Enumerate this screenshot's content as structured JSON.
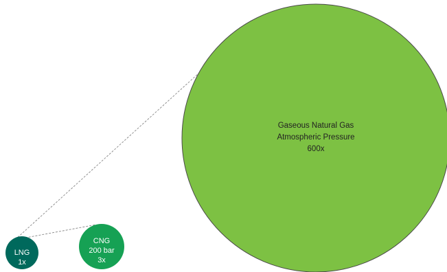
{
  "colors": {
    "gaseous": "#7dc143",
    "gaseous_stroke": "#4a4a4a",
    "lng": "#00695c",
    "cng": "#16a154",
    "connector": "#888888",
    "label_dark": "#222222",
    "label_light": "#ffffff"
  },
  "circles": {
    "gaseous": {
      "line1": "Gaseous Natural Gas",
      "line2": "Atmospheric Pressure",
      "line3": "600x"
    },
    "lng": {
      "line1": "LNG",
      "line2": "1x"
    },
    "cng": {
      "line1": "CNG",
      "line2": "200 bar",
      "line3": "3x"
    }
  }
}
